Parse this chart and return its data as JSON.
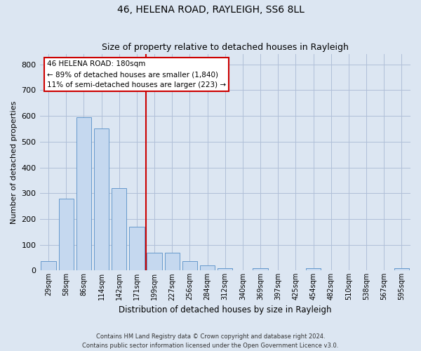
{
  "title1": "46, HELENA ROAD, RAYLEIGH, SS6 8LL",
  "title2": "Size of property relative to detached houses in Rayleigh",
  "xlabel": "Distribution of detached houses by size in Rayleigh",
  "ylabel": "Number of detached properties",
  "categories": [
    "29sqm",
    "58sqm",
    "86sqm",
    "114sqm",
    "142sqm",
    "171sqm",
    "199sqm",
    "227sqm",
    "256sqm",
    "284sqm",
    "312sqm",
    "340sqm",
    "369sqm",
    "397sqm",
    "425sqm",
    "454sqm",
    "482sqm",
    "510sqm",
    "538sqm",
    "567sqm",
    "595sqm"
  ],
  "values": [
    35,
    278,
    595,
    550,
    320,
    170,
    68,
    68,
    35,
    20,
    10,
    0,
    10,
    0,
    0,
    10,
    0,
    0,
    0,
    0,
    10
  ],
  "bar_color": "#c5d8ef",
  "bar_edgecolor": "#6699cc",
  "vline_color": "#cc0000",
  "annotation_line1": "46 HELENA ROAD: 180sqm",
  "annotation_line2": "← 89% of detached houses are smaller (1,840)",
  "annotation_line3": "11% of semi-detached houses are larger (223) →",
  "annotation_box_facecolor": "#ffffff",
  "annotation_box_edgecolor": "#cc0000",
  "footer1": "Contains HM Land Registry data © Crown copyright and database right 2024.",
  "footer2": "Contains public sector information licensed under the Open Government Licence v3.0.",
  "bg_color": "#dce6f2",
  "plot_bg_color": "#dce6f2",
  "ylim": [
    0,
    840
  ],
  "yticks": [
    0,
    100,
    200,
    300,
    400,
    500,
    600,
    700,
    800
  ],
  "vline_x": 5.5
}
